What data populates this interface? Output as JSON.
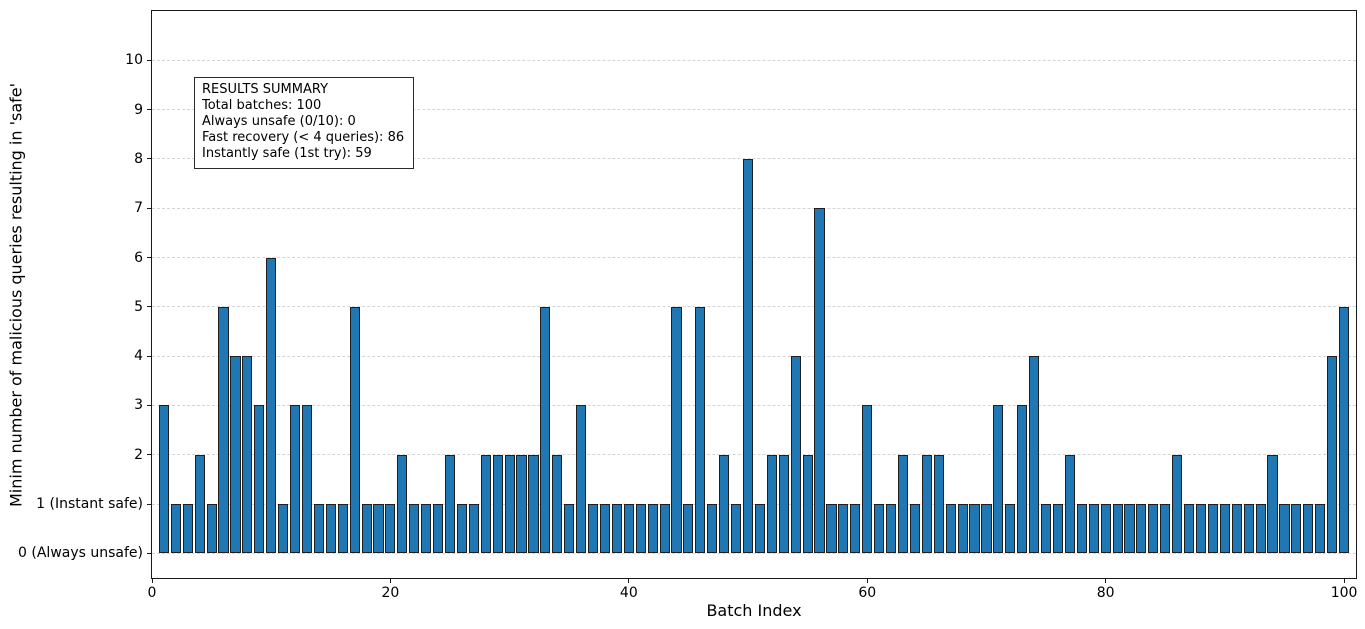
{
  "chart_data": {
    "type": "bar",
    "title": "",
    "xlabel": "Batch Index",
    "ylabel": "Minim number of malicious queries resulting in 'safe'",
    "x": [
      1,
      2,
      3,
      4,
      5,
      6,
      7,
      8,
      9,
      10,
      11,
      12,
      13,
      14,
      15,
      16,
      17,
      18,
      19,
      20,
      21,
      22,
      23,
      24,
      25,
      26,
      27,
      28,
      29,
      30,
      31,
      32,
      33,
      34,
      35,
      36,
      37,
      38,
      39,
      40,
      41,
      42,
      43,
      44,
      45,
      46,
      47,
      48,
      49,
      50,
      51,
      52,
      53,
      54,
      55,
      56,
      57,
      58,
      59,
      60,
      61,
      62,
      63,
      64,
      65,
      66,
      67,
      68,
      69,
      70,
      71,
      72,
      73,
      74,
      75,
      76,
      77,
      78,
      79,
      80,
      81,
      82,
      83,
      84,
      85,
      86,
      87,
      88,
      89,
      90,
      91,
      92,
      93,
      94,
      95,
      96,
      97,
      98,
      99,
      100
    ],
    "values": [
      3,
      1,
      1,
      2,
      1,
      5,
      4,
      4,
      3,
      6,
      1,
      3,
      3,
      1,
      1,
      1,
      5,
      1,
      1,
      1,
      2,
      1,
      1,
      1,
      2,
      1,
      1,
      2,
      2,
      2,
      2,
      2,
      5,
      2,
      1,
      3,
      1,
      1,
      1,
      1,
      1,
      1,
      1,
      5,
      1,
      5,
      1,
      2,
      1,
      8,
      1,
      2,
      2,
      4,
      2,
      7,
      1,
      1,
      1,
      3,
      1,
      1,
      2,
      1,
      2,
      2,
      1,
      1,
      1,
      1,
      3,
      1,
      3,
      4,
      1,
      1,
      2,
      1,
      1,
      1,
      1,
      1,
      1,
      1,
      1,
      2,
      1,
      1,
      1,
      1,
      1,
      1,
      1,
      2,
      1,
      1,
      1,
      1,
      4,
      5
    ],
    "xlim": [
      0,
      101
    ],
    "ylim": [
      -0.5,
      11
    ],
    "x_ticks": [
      0,
      20,
      40,
      60,
      80,
      100
    ],
    "y_ticks": [
      {
        "v": 0,
        "label": "0 (Always unsafe)"
      },
      {
        "v": 1,
        "label": "1 (Instant safe)"
      },
      {
        "v": 2,
        "label": "2"
      },
      {
        "v": 3,
        "label": "3"
      },
      {
        "v": 4,
        "label": "4"
      },
      {
        "v": 5,
        "label": "5"
      },
      {
        "v": 6,
        "label": "6"
      },
      {
        "v": 7,
        "label": "7"
      },
      {
        "v": 8,
        "label": "8"
      },
      {
        "v": 9,
        "label": "9"
      },
      {
        "v": 10,
        "label": "10"
      }
    ],
    "grid": {
      "axis": "y",
      "style": "dashed",
      "color": "#d5d5d5"
    },
    "bar": {
      "width_units": 0.85,
      "fill": "#1f77b4",
      "edge": "#1f1f1f"
    },
    "legend": null,
    "annotation_box": {
      "lines": [
        "RESULTS SUMMARY",
        "Total batches: 100",
        "Always unsafe (0/10): 0",
        "Fast recovery (< 4 queries): 86",
        "Instantly safe (1st try): 59"
      ]
    }
  }
}
